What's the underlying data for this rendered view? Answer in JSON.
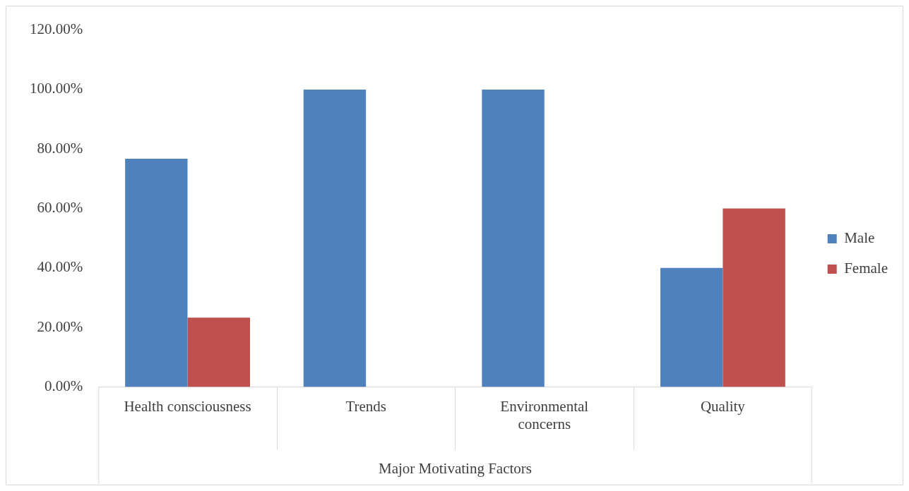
{
  "chart_data": {
    "type": "bar",
    "xlabel": "Major Motivating Factors",
    "categories": [
      "Health consciousness",
      "Trends",
      "Environmental concerns",
      "Quality"
    ],
    "series": [
      {
        "name": "Male",
        "color": "#4f81bd",
        "values": [
          76.7,
          100,
          100,
          40
        ]
      },
      {
        "name": "Female",
        "color": "#c0504d",
        "values": [
          23.3,
          0,
          0,
          60
        ]
      }
    ],
    "ylim": [
      0,
      120
    ],
    "yticks": [
      {
        "value": 0,
        "label": "0.00%"
      },
      {
        "value": 20,
        "label": "20.00%"
      },
      {
        "value": 40,
        "label": "40.00%"
      },
      {
        "value": 60,
        "label": "60.00%"
      },
      {
        "value": 80,
        "label": "80.00%"
      },
      {
        "value": 100,
        "label": "100.00%"
      },
      {
        "value": 120,
        "label": "120.00%"
      }
    ],
    "grid": false,
    "legend": "right"
  }
}
